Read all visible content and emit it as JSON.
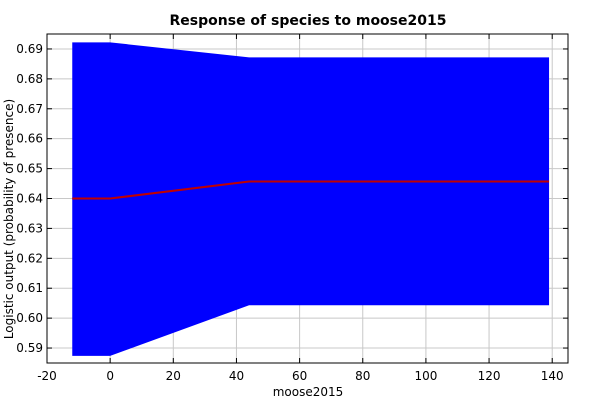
{
  "chart_data": {
    "type": "area",
    "title": "Response of species to moose2015",
    "xlabel": "moose2015",
    "ylabel": "Logistic output (probability of presence)",
    "xlim": [
      -20,
      145
    ],
    "ylim": [
      0.585,
      0.695
    ],
    "xticks": [
      -20,
      0,
      20,
      40,
      60,
      80,
      100,
      120,
      140
    ],
    "yticks": [
      0.59,
      0.6,
      0.61,
      0.62,
      0.63,
      0.64,
      0.65,
      0.66,
      0.67,
      0.68,
      0.69
    ],
    "xtick_labels": [
      "-20",
      "0",
      "20",
      "40",
      "60",
      "80",
      "100",
      "120",
      "140"
    ],
    "ytick_labels": [
      "0.59",
      "0.60",
      "0.61",
      "0.62",
      "0.63",
      "0.64",
      "0.65",
      "0.66",
      "0.67",
      "0.68",
      "0.69"
    ],
    "grid": true,
    "band": {
      "color": "#0000ff",
      "x": [
        -12,
        0,
        44,
        139
      ],
      "upper": [
        0.6922,
        0.6922,
        0.6872,
        0.6872
      ],
      "lower": [
        0.5874,
        0.5874,
        0.6043,
        0.6043
      ]
    },
    "series": [
      {
        "color": "#c00000",
        "x": [
          -12,
          0,
          44,
          139
        ],
        "values": [
          0.64,
          0.64,
          0.6457,
          0.6457
        ]
      }
    ]
  }
}
